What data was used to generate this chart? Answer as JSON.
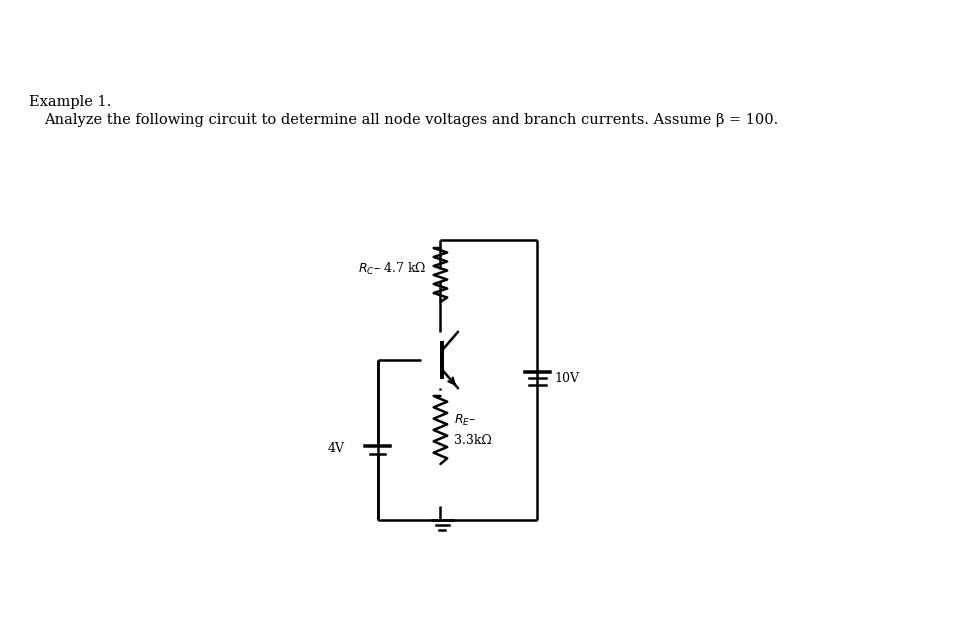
{
  "title_line1": "Example 1.",
  "title_line2": "Analyze the following circuit to determine all node voltages and branch currents. Assume β = 100.",
  "bg_color": "#ffffff",
  "text_color": "#000000",
  "line_color": "#000000",
  "rc_label_1": "R",
  "rc_label_2": "C",
  "rc_label_3": "– 4.7 kΩ",
  "re_label_top": "R",
  "re_label_sub": "E",
  "re_label_dash": "–",
  "re_label_bot": "3.3kΩ",
  "v10_label": "10V",
  "v4_label": "4V",
  "title1_fontsize": 10.5,
  "title2_fontsize": 10.5,
  "label_fontsize": 9.0
}
